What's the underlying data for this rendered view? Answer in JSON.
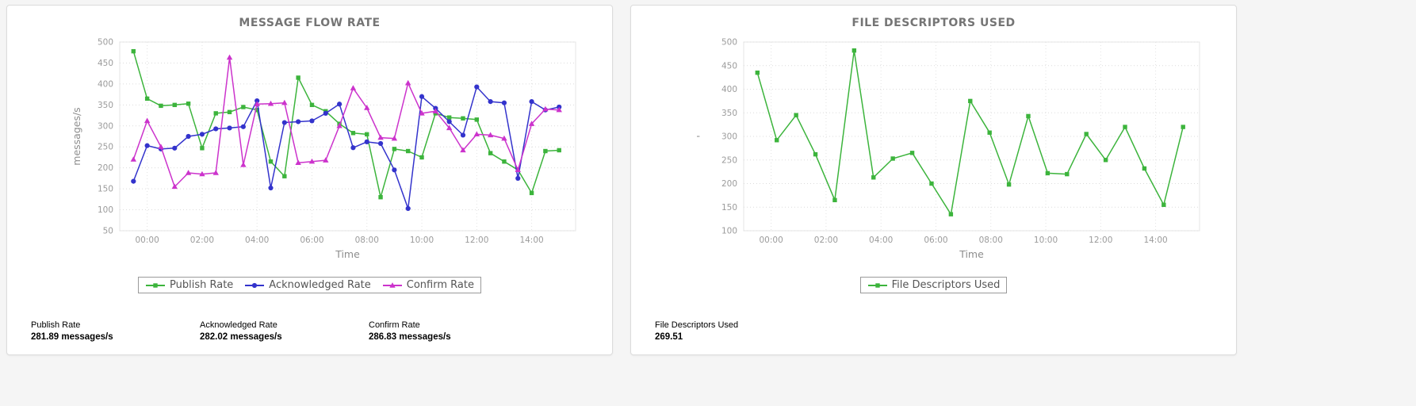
{
  "colors": {
    "publish_green": "#3cb43c",
    "acknowledged_blue": "#3333cc",
    "confirm_magenta": "#cc33cc",
    "grid": "#dcdcdc",
    "axis_text": "#9b9b9b",
    "title_text": "#757575"
  },
  "chart_data": [
    {
      "type": "line",
      "title": "MESSAGE FLOW RATE",
      "xlabel": "Time",
      "ylabel": "messages/s",
      "ylim": [
        50,
        500
      ],
      "yticks": [
        50,
        100,
        150,
        200,
        250,
        300,
        350,
        400,
        450,
        500
      ],
      "xlim_hours": [
        -1,
        15.6
      ],
      "xticks": [
        {
          "hour": 0,
          "label": "00:00"
        },
        {
          "hour": 2,
          "label": "02:00"
        },
        {
          "hour": 4,
          "label": "04:00"
        },
        {
          "hour": 6,
          "label": "06:00"
        },
        {
          "hour": 8,
          "label": "08:00"
        },
        {
          "hour": 10,
          "label": "10:00"
        },
        {
          "hour": 12,
          "label": "12:00"
        },
        {
          "hour": 14,
          "label": "14:00"
        }
      ],
      "grid": "dotted",
      "legend_position": "bottom",
      "sample_start_hour": -0.5,
      "sample_end_hour": 15.0,
      "series": [
        {
          "name": "Publish Rate",
          "color": "#3cb43c",
          "marker": "square",
          "values": [
            478,
            365,
            348,
            350,
            353,
            247,
            330,
            333,
            345,
            338,
            215,
            180,
            415,
            350,
            335,
            305,
            283,
            280,
            130,
            245,
            240,
            225,
            330,
            320,
            318,
            315,
            235,
            215,
            195,
            140,
            240,
            242
          ]
        },
        {
          "name": "Acknowledged Rate",
          "color": "#3333cc",
          "marker": "circle",
          "values": [
            168,
            253,
            245,
            247,
            275,
            280,
            293,
            295,
            298,
            360,
            152,
            308,
            310,
            312,
            330,
            352,
            248,
            262,
            258,
            195,
            103,
            370,
            342,
            310,
            278,
            393,
            358,
            355,
            175,
            358,
            338,
            345
          ]
        },
        {
          "name": "Confirm Rate",
          "color": "#cc33cc",
          "marker": "triangle",
          "values": [
            220,
            312,
            250,
            155,
            188,
            185,
            188,
            463,
            207,
            352,
            353,
            355,
            212,
            215,
            218,
            300,
            390,
            343,
            272,
            270,
            402,
            330,
            335,
            295,
            242,
            280,
            278,
            270,
            195,
            305,
            340,
            338
          ]
        }
      ],
      "summary": [
        {
          "label": "Publish Rate",
          "value": "281.89 messages/s"
        },
        {
          "label": "Acknowledged Rate",
          "value": "282.02 messages/s"
        },
        {
          "label": "Confirm Rate",
          "value": "286.83 messages/s"
        }
      ]
    },
    {
      "type": "line",
      "title": "FILE DESCRIPTORS USED",
      "xlabel": "Time",
      "ylabel": "'",
      "ylim": [
        100,
        500
      ],
      "yticks": [
        100,
        150,
        200,
        250,
        300,
        350,
        400,
        450,
        500
      ],
      "xlim_hours": [
        -1,
        15.6
      ],
      "xticks": [
        {
          "hour": 0,
          "label": "00:00"
        },
        {
          "hour": 2,
          "label": "02:00"
        },
        {
          "hour": 4,
          "label": "04:00"
        },
        {
          "hour": 6,
          "label": "06:00"
        },
        {
          "hour": 8,
          "label": "08:00"
        },
        {
          "hour": 10,
          "label": "10:00"
        },
        {
          "hour": 12,
          "label": "12:00"
        },
        {
          "hour": 14,
          "label": "14:00"
        }
      ],
      "grid": "dotted",
      "legend_position": "bottom",
      "sample_start_hour": -0.5,
      "sample_end_hour": 15.0,
      "series": [
        {
          "name": "File Descriptors Used",
          "color": "#3cb43c",
          "marker": "square",
          "values": [
            435,
            292,
            345,
            262,
            165,
            482,
            213,
            253,
            265,
            200,
            135,
            375,
            308,
            198,
            343,
            222,
            220,
            305,
            250,
            320,
            232,
            155,
            320
          ]
        }
      ],
      "summary": [
        {
          "label": "File Descriptors Used",
          "value": "269.51"
        }
      ]
    }
  ]
}
